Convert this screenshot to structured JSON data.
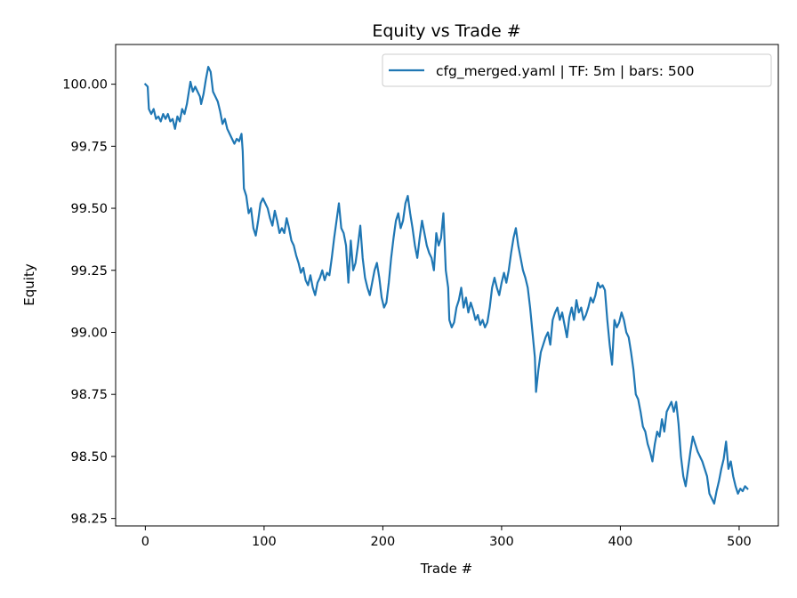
{
  "chart_data": {
    "type": "line",
    "title": "Equity vs Trade #",
    "xlabel": "Trade #",
    "ylabel": "Equity",
    "xlim": [
      -25,
      533
    ],
    "ylim": [
      98.22,
      100.16
    ],
    "xticks": [
      0,
      100,
      200,
      300,
      400,
      500
    ],
    "yticks": [
      98.25,
      98.5,
      98.75,
      99.0,
      99.25,
      99.5,
      99.75,
      100.0
    ],
    "ytick_labels": [
      "98.25",
      "98.50",
      "98.75",
      "99.00",
      "99.25",
      "99.50",
      "99.75",
      "100.00"
    ],
    "xtick_labels": [
      "0",
      "100",
      "200",
      "300",
      "400",
      "500"
    ],
    "grid": false,
    "legend_position": "top-right",
    "series": [
      {
        "name": "cfg_merged.yaml | TF: 5m | bars: 500",
        "color": "#1f77b4",
        "points": [
          [
            0,
            100.0
          ],
          [
            2,
            99.99
          ],
          [
            3,
            99.9
          ],
          [
            5,
            99.88
          ],
          [
            7,
            99.9
          ],
          [
            9,
            99.86
          ],
          [
            11,
            99.87
          ],
          [
            13,
            99.85
          ],
          [
            15,
            99.88
          ],
          [
            17,
            99.86
          ],
          [
            19,
            99.88
          ],
          [
            21,
            99.85
          ],
          [
            23,
            99.86
          ],
          [
            25,
            99.82
          ],
          [
            27,
            99.87
          ],
          [
            29,
            99.85
          ],
          [
            31,
            99.9
          ],
          [
            33,
            99.88
          ],
          [
            35,
            99.92
          ],
          [
            37,
            99.98
          ],
          [
            38,
            100.01
          ],
          [
            40,
            99.97
          ],
          [
            42,
            99.99
          ],
          [
            44,
            99.97
          ],
          [
            46,
            99.95
          ],
          [
            47,
            99.92
          ],
          [
            49,
            99.96
          ],
          [
            51,
            100.02
          ],
          [
            53,
            100.07
          ],
          [
            55,
            100.05
          ],
          [
            57,
            99.97
          ],
          [
            59,
            99.95
          ],
          [
            61,
            99.93
          ],
          [
            63,
            99.89
          ],
          [
            65,
            99.84
          ],
          [
            67,
            99.86
          ],
          [
            69,
            99.82
          ],
          [
            71,
            99.8
          ],
          [
            73,
            99.78
          ],
          [
            75,
            99.76
          ],
          [
            77,
            99.78
          ],
          [
            79,
            99.77
          ],
          [
            81,
            99.8
          ],
          [
            82,
            99.73
          ],
          [
            83,
            99.58
          ],
          [
            85,
            99.55
          ],
          [
            87,
            99.48
          ],
          [
            89,
            99.5
          ],
          [
            91,
            99.42
          ],
          [
            93,
            99.39
          ],
          [
            95,
            99.45
          ],
          [
            97,
            99.52
          ],
          [
            99,
            99.54
          ],
          [
            101,
            99.52
          ],
          [
            103,
            99.5
          ],
          [
            105,
            99.46
          ],
          [
            107,
            99.43
          ],
          [
            109,
            99.49
          ],
          [
            111,
            99.45
          ],
          [
            113,
            99.4
          ],
          [
            115,
            99.42
          ],
          [
            117,
            99.4
          ],
          [
            119,
            99.46
          ],
          [
            121,
            99.42
          ],
          [
            123,
            99.37
          ],
          [
            125,
            99.35
          ],
          [
            127,
            99.31
          ],
          [
            129,
            99.28
          ],
          [
            131,
            99.24
          ],
          [
            133,
            99.26
          ],
          [
            135,
            99.21
          ],
          [
            137,
            99.19
          ],
          [
            139,
            99.23
          ],
          [
            141,
            99.18
          ],
          [
            143,
            99.15
          ],
          [
            145,
            99.2
          ],
          [
            147,
            99.22
          ],
          [
            149,
            99.25
          ],
          [
            151,
            99.21
          ],
          [
            153,
            99.24
          ],
          [
            155,
            99.23
          ],
          [
            157,
            99.3
          ],
          [
            159,
            99.38
          ],
          [
            161,
            99.45
          ],
          [
            163,
            99.52
          ],
          [
            165,
            99.42
          ],
          [
            167,
            99.4
          ],
          [
            169,
            99.35
          ],
          [
            171,
            99.2
          ],
          [
            173,
            99.37
          ],
          [
            175,
            99.25
          ],
          [
            177,
            99.28
          ],
          [
            179,
            99.35
          ],
          [
            181,
            99.43
          ],
          [
            183,
            99.3
          ],
          [
            185,
            99.22
          ],
          [
            187,
            99.18
          ],
          [
            189,
            99.15
          ],
          [
            191,
            99.2
          ],
          [
            193,
            99.25
          ],
          [
            195,
            99.28
          ],
          [
            197,
            99.22
          ],
          [
            199,
            99.14
          ],
          [
            201,
            99.1
          ],
          [
            203,
            99.12
          ],
          [
            205,
            99.2
          ],
          [
            207,
            99.3
          ],
          [
            209,
            99.38
          ],
          [
            211,
            99.45
          ],
          [
            213,
            99.48
          ],
          [
            215,
            99.42
          ],
          [
            217,
            99.45
          ],
          [
            219,
            99.52
          ],
          [
            221,
            99.55
          ],
          [
            223,
            99.48
          ],
          [
            225,
            99.42
          ],
          [
            227,
            99.35
          ],
          [
            229,
            99.3
          ],
          [
            231,
            99.38
          ],
          [
            233,
            99.45
          ],
          [
            235,
            99.4
          ],
          [
            237,
            99.35
          ],
          [
            239,
            99.32
          ],
          [
            241,
            99.3
          ],
          [
            243,
            99.25
          ],
          [
            245,
            99.4
          ],
          [
            247,
            99.35
          ],
          [
            249,
            99.38
          ],
          [
            251,
            99.48
          ],
          [
            253,
            99.25
          ],
          [
            255,
            99.18
          ],
          [
            256,
            99.05
          ],
          [
            258,
            99.02
          ],
          [
            260,
            99.04
          ],
          [
            262,
            99.1
          ],
          [
            264,
            99.13
          ],
          [
            266,
            99.18
          ],
          [
            268,
            99.1
          ],
          [
            270,
            99.14
          ],
          [
            272,
            99.08
          ],
          [
            274,
            99.12
          ],
          [
            276,
            99.09
          ],
          [
            278,
            99.05
          ],
          [
            280,
            99.07
          ],
          [
            282,
            99.03
          ],
          [
            284,
            99.05
          ],
          [
            286,
            99.02
          ],
          [
            288,
            99.04
          ],
          [
            290,
            99.1
          ],
          [
            292,
            99.18
          ],
          [
            294,
            99.22
          ],
          [
            296,
            99.18
          ],
          [
            298,
            99.15
          ],
          [
            300,
            99.2
          ],
          [
            302,
            99.24
          ],
          [
            304,
            99.2
          ],
          [
            306,
            99.25
          ],
          [
            308,
            99.32
          ],
          [
            310,
            99.38
          ],
          [
            312,
            99.42
          ],
          [
            314,
            99.35
          ],
          [
            316,
            99.3
          ],
          [
            318,
            99.25
          ],
          [
            320,
            99.22
          ],
          [
            322,
            99.18
          ],
          [
            324,
            99.1
          ],
          [
            326,
            99.0
          ],
          [
            328,
            98.9
          ],
          [
            329,
            98.76
          ],
          [
            331,
            98.85
          ],
          [
            333,
            98.92
          ],
          [
            335,
            98.95
          ],
          [
            337,
            98.98
          ],
          [
            339,
            99.0
          ],
          [
            341,
            98.95
          ],
          [
            343,
            99.05
          ],
          [
            345,
            99.08
          ],
          [
            347,
            99.1
          ],
          [
            349,
            99.05
          ],
          [
            351,
            99.08
          ],
          [
            353,
            99.03
          ],
          [
            355,
            98.98
          ],
          [
            357,
            99.06
          ],
          [
            359,
            99.1
          ],
          [
            361,
            99.05
          ],
          [
            363,
            99.13
          ],
          [
            365,
            99.08
          ],
          [
            367,
            99.1
          ],
          [
            369,
            99.05
          ],
          [
            371,
            99.07
          ],
          [
            373,
            99.1
          ],
          [
            375,
            99.14
          ],
          [
            377,
            99.12
          ],
          [
            379,
            99.15
          ],
          [
            381,
            99.2
          ],
          [
            383,
            99.18
          ],
          [
            385,
            99.19
          ],
          [
            387,
            99.17
          ],
          [
            389,
            99.05
          ],
          [
            391,
            98.95
          ],
          [
            393,
            98.87
          ],
          [
            395,
            99.05
          ],
          [
            397,
            99.02
          ],
          [
            399,
            99.04
          ],
          [
            401,
            99.08
          ],
          [
            403,
            99.05
          ],
          [
            405,
            99.0
          ],
          [
            407,
            98.98
          ],
          [
            409,
            98.92
          ],
          [
            411,
            98.85
          ],
          [
            413,
            98.75
          ],
          [
            415,
            98.73
          ],
          [
            417,
            98.68
          ],
          [
            419,
            98.62
          ],
          [
            421,
            98.6
          ],
          [
            423,
            98.55
          ],
          [
            425,
            98.52
          ],
          [
            427,
            98.48
          ],
          [
            429,
            98.55
          ],
          [
            431,
            98.6
          ],
          [
            433,
            98.58
          ],
          [
            435,
            98.65
          ],
          [
            437,
            98.6
          ],
          [
            439,
            98.68
          ],
          [
            441,
            98.7
          ],
          [
            443,
            98.72
          ],
          [
            445,
            98.68
          ],
          [
            447,
            98.72
          ],
          [
            449,
            98.63
          ],
          [
            451,
            98.5
          ],
          [
            453,
            98.42
          ],
          [
            455,
            98.38
          ],
          [
            457,
            98.45
          ],
          [
            459,
            98.52
          ],
          [
            461,
            98.58
          ],
          [
            463,
            98.55
          ],
          [
            465,
            98.52
          ],
          [
            467,
            98.5
          ],
          [
            469,
            98.48
          ],
          [
            471,
            98.45
          ],
          [
            473,
            98.42
          ],
          [
            475,
            98.35
          ],
          [
            477,
            98.33
          ],
          [
            479,
            98.31
          ],
          [
            481,
            98.36
          ],
          [
            483,
            98.4
          ],
          [
            485,
            98.45
          ],
          [
            487,
            98.49
          ],
          [
            489,
            98.56
          ],
          [
            491,
            98.45
          ],
          [
            493,
            98.48
          ],
          [
            495,
            98.42
          ],
          [
            497,
            98.38
          ],
          [
            499,
            98.35
          ],
          [
            501,
            98.37
          ],
          [
            503,
            98.36
          ],
          [
            505,
            98.38
          ],
          [
            507,
            98.37
          ]
        ]
      }
    ]
  }
}
